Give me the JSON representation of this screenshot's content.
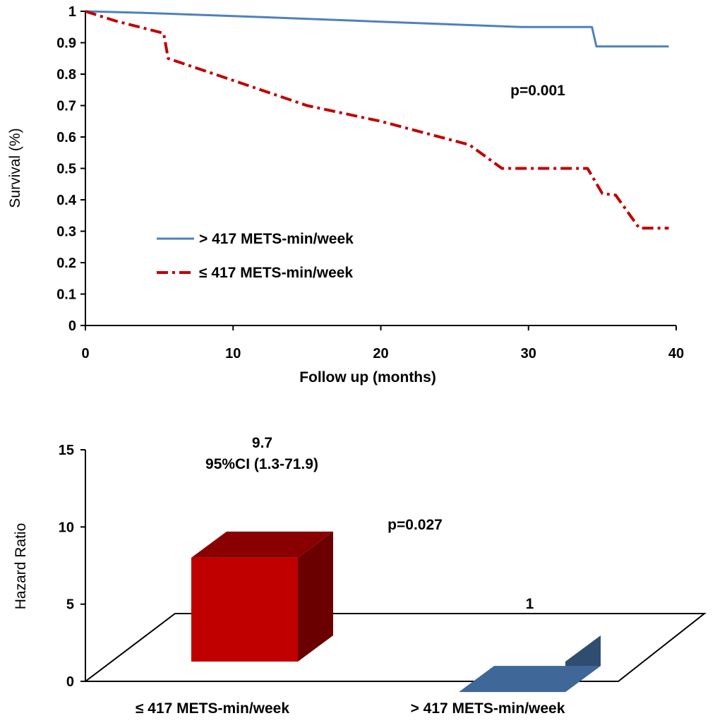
{
  "chart_data": [
    {
      "type": "line",
      "ylabel": "Survival (%)",
      "xlabel": "Follow up (months)",
      "xlim": [
        0,
        40
      ],
      "ylim": [
        0,
        1
      ],
      "xticks": [
        "0",
        "10",
        "20",
        "30",
        "40"
      ],
      "yticks": [
        "0",
        "0.1",
        "0.2",
        "0.3",
        "0.4",
        "0.5",
        "0.6",
        "0.7",
        "0.8",
        "0.9",
        "1"
      ],
      "annotation": "p=0.001",
      "legend_placement": "lower-left",
      "series": [
        {
          "name": "> 417 METS-min/week",
          "color": "#4f81bd",
          "style": "solid",
          "points": [
            [
              0,
              1.0
            ],
            [
              4,
              0.995
            ],
            [
              10,
              0.985
            ],
            [
              20,
              0.967
            ],
            [
              29.5,
              0.95
            ],
            [
              34.3,
              0.95
            ],
            [
              34.6,
              0.888
            ],
            [
              39.5,
              0.888
            ]
          ]
        },
        {
          "name": "≤ 417 METS-min/week",
          "color": "#c00000",
          "style": "dashdot",
          "points": [
            [
              0,
              1.0
            ],
            [
              2,
              0.97
            ],
            [
              5.3,
              0.93
            ],
            [
              5.6,
              0.85
            ],
            [
              10,
              0.78
            ],
            [
              15,
              0.7
            ],
            [
              20,
              0.65
            ],
            [
              26,
              0.575
            ],
            [
              28.2,
              0.5
            ],
            [
              34,
              0.5
            ],
            [
              35,
              0.42
            ],
            [
              35.9,
              0.415
            ],
            [
              37.5,
              0.31
            ],
            [
              39.5,
              0.31
            ]
          ]
        }
      ]
    },
    {
      "type": "bar",
      "ylabel": "Hazard Ratio",
      "ylim": [
        0,
        15
      ],
      "yticks": [
        "0",
        "5",
        "10",
        "15"
      ],
      "categories": [
        "≤ 417 METS-min/week",
        "> 417 METS-min/week"
      ],
      "values": [
        9.7,
        1
      ],
      "value_labels": [
        "9.7",
        "1"
      ],
      "ci_label": "95%CI (1.3-71.9)",
      "annotation": "p=0.027",
      "colors": [
        "#c00000",
        "#4f81bd"
      ],
      "style": "3d"
    }
  ]
}
